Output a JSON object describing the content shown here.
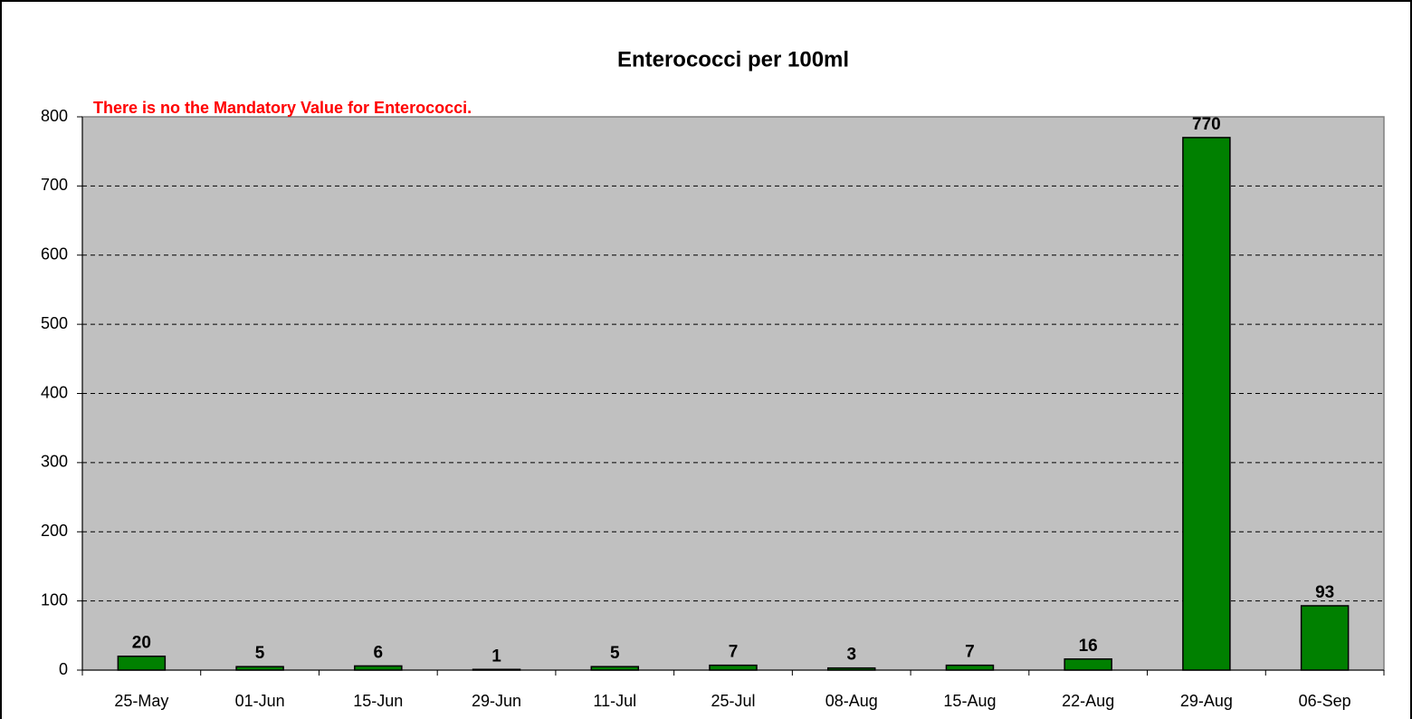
{
  "chart_data": {
    "type": "bar",
    "title": "Enterococci per 100ml",
    "annotation": "There is no the Mandatory Value for Enterococci.",
    "categories": [
      "25-May",
      "01-Jun",
      "15-Jun",
      "29-Jun",
      "11-Jul",
      "25-Jul",
      "08-Aug",
      "15-Aug",
      "22-Aug",
      "29-Aug",
      "06-Sep"
    ],
    "values": [
      20,
      5,
      6,
      1,
      5,
      7,
      3,
      7,
      16,
      770,
      93
    ],
    "color": "#008000",
    "ylim": [
      0,
      800
    ],
    "yticks": [
      0,
      100,
      200,
      300,
      400,
      500,
      600,
      700,
      800
    ],
    "grid": true
  }
}
